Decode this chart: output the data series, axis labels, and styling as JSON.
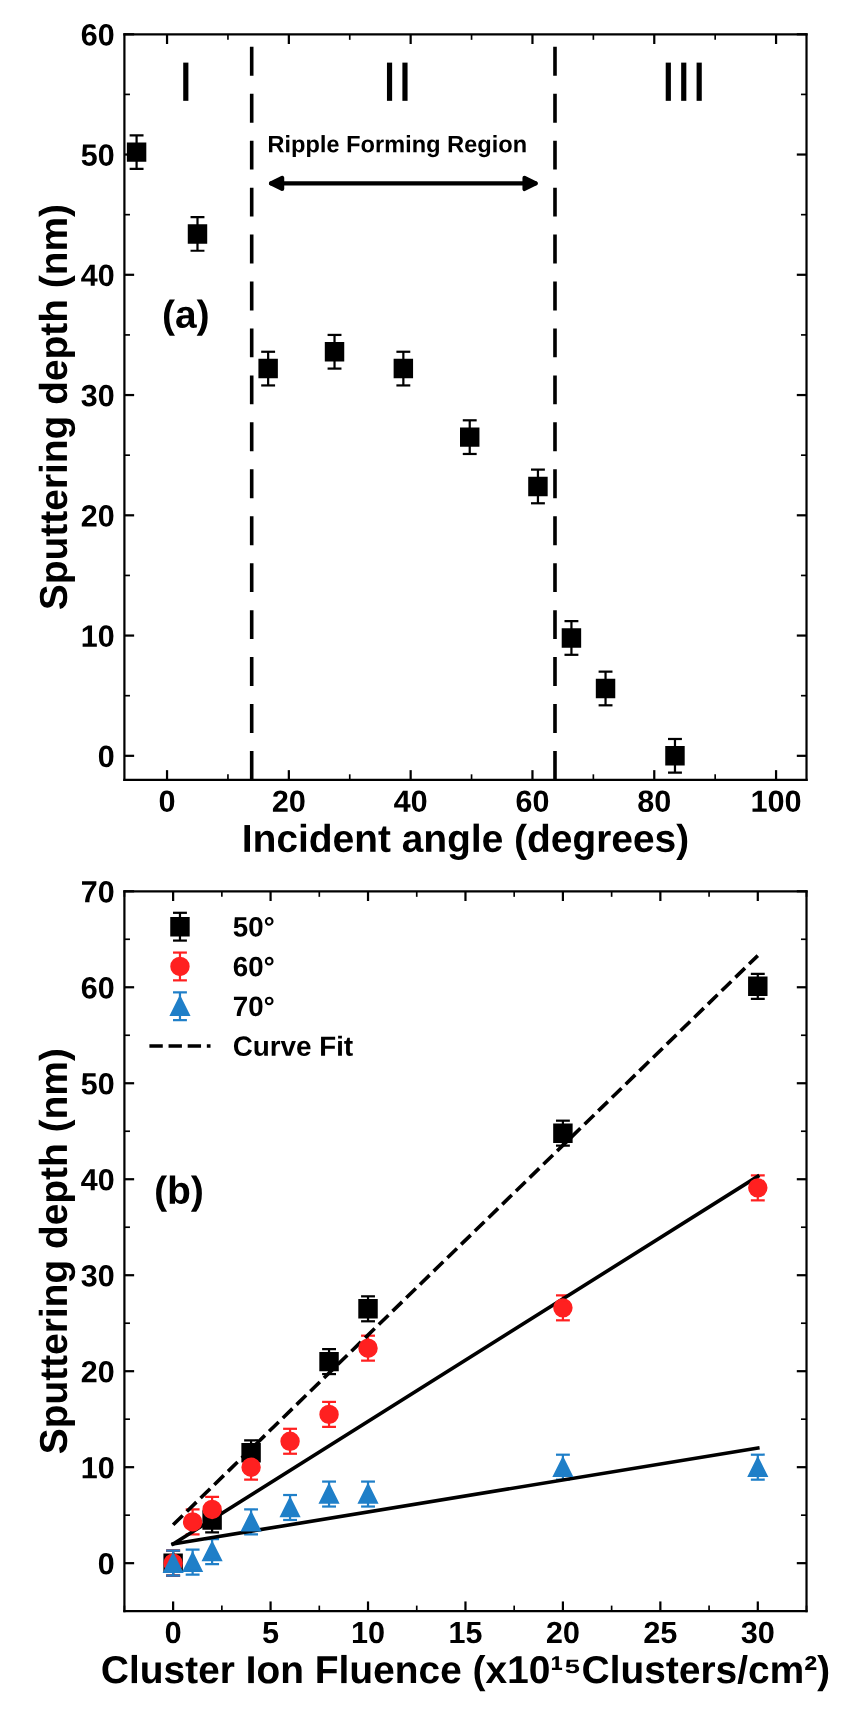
{
  "chart_data": [
    {
      "type": "scatter",
      "xlabel": "Incident angle (degrees)",
      "ylabel": "Sputtering depth (nm)",
      "x": [
        -5,
        5,
        16.6,
        27.5,
        38.8,
        49.7,
        60.9,
        66.4,
        72,
        83.4
      ],
      "series": [
        {
          "color": "#000000",
          "marker": "square",
          "values": [
            50.2,
            43.4,
            32.2,
            33.6,
            32.2,
            26.5,
            22.4,
            9.8,
            5.6,
            0
          ],
          "errors": [
            1.4,
            1.4,
            1.4,
            1.4,
            1.4,
            1.4,
            1.4,
            1.4,
            1.4,
            1.4
          ]
        }
      ],
      "xlim": [
        -7,
        105
      ],
      "ylim": [
        -2,
        60
      ],
      "xticks": [
        0,
        20,
        40,
        60,
        80,
        100
      ],
      "yticks": [
        0,
        10,
        20,
        30,
        40,
        50,
        60
      ],
      "ref_lines": [
        {
          "axis": "x",
          "value": 13.9,
          "line_style": "dashed",
          "color": "#000000"
        },
        {
          "axis": "x",
          "value": 63.7,
          "line_style": "dashed",
          "color": "#000000"
        }
      ],
      "annotations": [
        "I",
        "II",
        "III",
        "Ripple Forming Region",
        "(a)"
      ],
      "grid": false,
      "legend": false
    },
    {
      "type": "scatter",
      "xlabel": "Cluster Ion Fluence (x10¹⁵Clusters/cm²)",
      "ylabel": "Sputtering depth (nm)",
      "series": [
        {
          "name": "50°",
          "color": "#000000",
          "marker": "square",
          "x": [
            0,
            1,
            2,
            4,
            8,
            10,
            20,
            30
          ],
          "values": [
            0,
            null,
            4.5,
            11.5,
            21,
            26.5,
            44.8,
            60.1
          ],
          "errors": [
            1.3,
            null,
            1.3,
            1.3,
            1.3,
            1.3,
            1.3,
            1.3
          ]
        },
        {
          "name": "60°",
          "color": "#ff2020",
          "marker": "circle",
          "x": [
            0,
            1,
            2,
            4,
            6,
            8,
            10,
            20,
            30
          ],
          "values": [
            0,
            4.3,
            5.6,
            10,
            12.7,
            15.5,
            22.4,
            26.6,
            39.1
          ],
          "errors": [
            1.3,
            1.3,
            1.3,
            1.3,
            1.3,
            1.3,
            1.3,
            1.3,
            1.3
          ]
        },
        {
          "name": "70°",
          "color": "#1f7fc8",
          "marker": "triangle",
          "x": [
            0,
            1,
            2,
            4,
            6,
            8,
            10,
            20,
            30
          ],
          "values": [
            0,
            0.1,
            1.2,
            4.3,
            5.8,
            7.2,
            7.2,
            10,
            10
          ],
          "errors": [
            1.3,
            1.3,
            1.3,
            1.3,
            1.3,
            1.3,
            1.3,
            1.3,
            1.3
          ]
        },
        {
          "name": "Curve Fit",
          "type": "line",
          "color": "#000000",
          "line_style": "dashed",
          "marker": "none",
          "x": [
            0,
            30
          ],
          "values": [
            4,
            63.3
          ]
        },
        {
          "type": "line",
          "color": "#000000",
          "line_style": "solid",
          "marker": "none",
          "x": [
            0,
            30
          ],
          "values": [
            2,
            40.3
          ]
        },
        {
          "type": "line",
          "color": "#000000",
          "line_style": "solid",
          "marker": "none",
          "x": [
            0,
            30
          ],
          "values": [
            2,
            12
          ]
        }
      ],
      "xlim": [
        -2.5,
        32.5
      ],
      "ylim": [
        -5,
        70
      ],
      "xticks": [
        0,
        5,
        10,
        15,
        20,
        25,
        30
      ],
      "yticks": [
        0,
        10,
        20,
        30,
        40,
        50,
        60,
        70
      ],
      "annotations": [
        "(b)"
      ],
      "grid": false,
      "legend": "top left"
    }
  ]
}
